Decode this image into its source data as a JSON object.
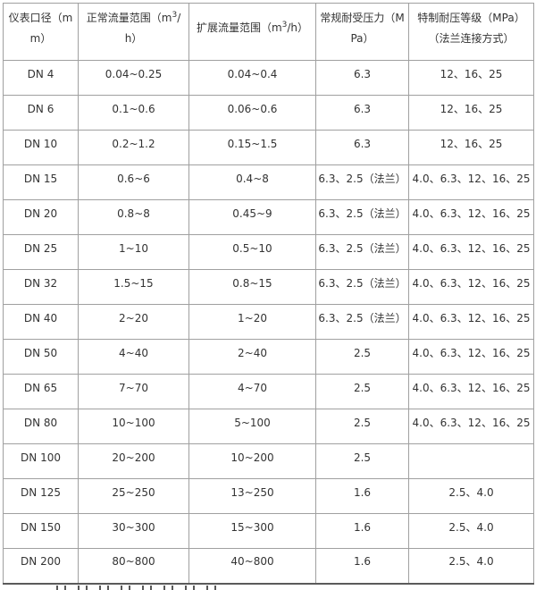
{
  "table": {
    "columns": [
      {
        "label": "仪表口径（mm）"
      },
      {
        "prefix": "正常流量范围（m",
        "sup": "3",
        "suffix": "/h）"
      },
      {
        "prefix": "扩展流量范围（m",
        "sup": "3",
        "suffix": "/h）"
      },
      {
        "label": "常规耐受压力（MPa）"
      },
      {
        "label": "特制耐压等级（MPa）（法兰连接方式）"
      }
    ],
    "rows": [
      [
        "DN 4",
        "0.04~0.25",
        "0.04~0.4",
        "6.3",
        "12、16、25"
      ],
      [
        "DN 6",
        "0.1~0.6",
        "0.06~0.6",
        "6.3",
        "12、16、25"
      ],
      [
        "DN 10",
        "0.2~1.2",
        "0.15~1.5",
        "6.3",
        "12、16、25"
      ],
      [
        "DN 15",
        "0.6~6",
        "0.4~8",
        "6.3、2.5（法兰）",
        "4.0、6.3、12、16、25"
      ],
      [
        "DN 20",
        "0.8~8",
        "0.45~9",
        "6.3、2.5（法兰）",
        "4.0、6.3、12、16、25"
      ],
      [
        "DN 25",
        "1~10",
        "0.5~10",
        "6.3、2.5（法兰）",
        "4.0、6.3、12、16、25"
      ],
      [
        "DN 32",
        "1.5~15",
        "0.8~15",
        "6.3、2.5（法兰）",
        "4.0、6.3、12、16、25"
      ],
      [
        "DN 40",
        "2~20",
        "1~20",
        "6.3、2.5（法兰）",
        "4.0、6.3、12、16、25"
      ],
      [
        "DN 50",
        "4~40",
        "2~40",
        "2.5",
        "4.0、6.3、12、16、25"
      ],
      [
        "DN 65",
        "7~70",
        "4~70",
        "2.5",
        "4.0、6.3、12、16、25"
      ],
      [
        "DN 80",
        "10~100",
        "5~100",
        "2.5",
        "4.0、6.3、12、16、25"
      ],
      [
        "DN 100",
        "20~200",
        "10~200",
        "2.5",
        ""
      ],
      [
        "DN 125",
        "25~250",
        "13~250",
        "1.6",
        "2.5、4.0"
      ],
      [
        "DN 150",
        "30~300",
        "15~300",
        "1.6",
        "2.5、4.0"
      ],
      [
        "DN 200",
        "80~800",
        "40~800",
        "1.6",
        "2.5、4.0"
      ]
    ]
  },
  "colors": {
    "grid": "#a0a0a0",
    "outer_bottom_border": "#5a5a5a",
    "text": "#333333",
    "background": "#ffffff"
  }
}
